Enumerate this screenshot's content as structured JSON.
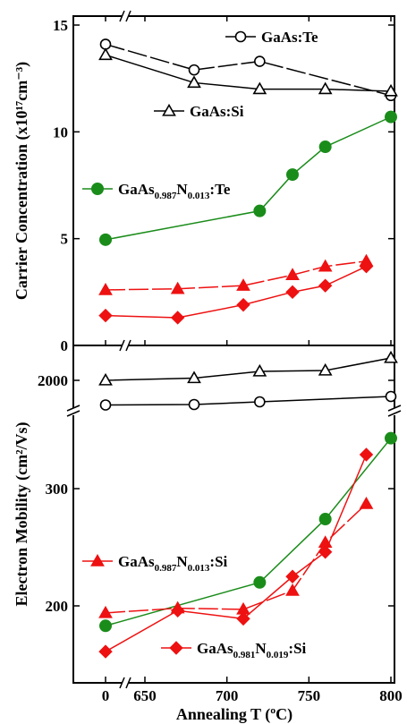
{
  "chart_data": {
    "type": "line",
    "x_axis": {
      "label": "Annealing T (ºC)",
      "ticks": [
        "0",
        "650",
        "700",
        "750",
        "800"
      ],
      "broken_between": [
        "0",
        "650"
      ]
    },
    "panels": [
      {
        "id": "carrier-concentration",
        "ylabel": "Carrier Concentration (x10¹⁷cm⁻³)",
        "y_ticks": [
          "0",
          "5",
          "10",
          "15"
        ],
        "ylim": [
          0,
          15
        ],
        "series": [
          {
            "name": "GaAs:Te",
            "marker": "open-circle",
            "color": "#000000",
            "dash": "long",
            "points": [
              {
                "x": 0,
                "y": 14.1
              },
              {
                "x": 680,
                "y": 12.9
              },
              {
                "x": 720,
                "y": 13.3
              },
              {
                "x": 800,
                "y": 11.7
              }
            ]
          },
          {
            "name": "GaAs:Si",
            "marker": "open-triangle",
            "color": "#000000",
            "dash": "solid",
            "points": [
              {
                "x": 0,
                "y": 13.6
              },
              {
                "x": 680,
                "y": 12.3
              },
              {
                "x": 720,
                "y": 12.0
              },
              {
                "x": 760,
                "y": 12.0
              },
              {
                "x": 800,
                "y": 11.9
              }
            ]
          },
          {
            "name": "GaAs0.987N0.013:Te",
            "marker": "filled-circle",
            "color": "#1a8c1a",
            "dash": "solid",
            "points": [
              {
                "x": 0,
                "y": 4.95
              },
              {
                "x": 720,
                "y": 6.3
              },
              {
                "x": 740,
                "y": 8.0
              },
              {
                "x": 760,
                "y": 9.3
              },
              {
                "x": 800,
                "y": 10.7
              }
            ]
          },
          {
            "name": "GaAs0.987N0.013:Si",
            "marker": "filled-triangle",
            "color": "#ee1111",
            "dash": "long",
            "points": [
              {
                "x": 0,
                "y": 2.6
              },
              {
                "x": 670,
                "y": 2.65
              },
              {
                "x": 710,
                "y": 2.8
              },
              {
                "x": 740,
                "y": 3.3
              },
              {
                "x": 760,
                "y": 3.7
              },
              {
                "x": 785,
                "y": 3.95
              }
            ]
          },
          {
            "name": "GaAs0.981N0.019:Si",
            "marker": "filled-diamond",
            "color": "#ee1111",
            "dash": "solid",
            "points": [
              {
                "x": 0,
                "y": 1.4
              },
              {
                "x": 670,
                "y": 1.3
              },
              {
                "x": 710,
                "y": 1.9
              },
              {
                "x": 740,
                "y": 2.5
              },
              {
                "x": 760,
                "y": 2.8
              },
              {
                "x": 785,
                "y": 3.7
              }
            ]
          }
        ]
      },
      {
        "id": "electron-mobility",
        "ylabel": "Electron Mobility (cm²/Vs)",
        "y_ticks": [
          "200",
          "300",
          "2000"
        ],
        "broken_between": [
          "300",
          "2000"
        ],
        "ylim_lower": [
          150,
          365
        ],
        "series": [
          {
            "name": "GaAs:Si",
            "marker": "open-triangle",
            "color": "#000000",
            "dash": "solid",
            "points": [
              {
                "x": 0,
                "y": 2000
              },
              {
                "x": 680,
                "y": 2025
              },
              {
                "x": 720,
                "y": 2100
              },
              {
                "x": 760,
                "y": 2110
              },
              {
                "x": 800,
                "y": 2250
              }
            ]
          },
          {
            "name": "GaAs:Te",
            "marker": "open-circle",
            "color": "#000000",
            "dash": "solid",
            "points": [
              {
                "x": 0,
                "y": 1725
              },
              {
                "x": 680,
                "y": 1730
              },
              {
                "x": 720,
                "y": 1760
              },
              {
                "x": 800,
                "y": 1820
              }
            ]
          },
          {
            "name": "GaAs0.987N0.013:Te",
            "marker": "filled-circle",
            "color": "#1a8c1a",
            "dash": "solid",
            "points": [
              {
                "x": 0,
                "y": 183
              },
              {
                "x": 720,
                "y": 220
              },
              {
                "x": 760,
                "y": 274
              },
              {
                "x": 800,
                "y": 343
              }
            ]
          },
          {
            "name": "GaAs0.987N0.013:Si",
            "marker": "filled-triangle",
            "color": "#ee1111",
            "dash": "long",
            "points": [
              {
                "x": 0,
                "y": 194
              },
              {
                "x": 670,
                "y": 198
              },
              {
                "x": 710,
                "y": 197
              },
              {
                "x": 740,
                "y": 213
              },
              {
                "x": 760,
                "y": 254
              },
              {
                "x": 785,
                "y": 287
              }
            ]
          },
          {
            "name": "GaAs0.981N0.019:Si",
            "marker": "filled-diamond",
            "color": "#ee1111",
            "dash": "solid",
            "points": [
              {
                "x": 0,
                "y": 161
              },
              {
                "x": 670,
                "y": 196
              },
              {
                "x": 710,
                "y": 189
              },
              {
                "x": 740,
                "y": 225
              },
              {
                "x": 760,
                "y": 246
              },
              {
                "x": 785,
                "y": 329
              }
            ]
          }
        ]
      }
    ],
    "legend": [
      {
        "panel": "carrier-concentration",
        "series": "GaAs:Te",
        "text": "GaAs:Te"
      },
      {
        "panel": "carrier-concentration",
        "series": "GaAs:Si",
        "text": "GaAs:Si"
      },
      {
        "panel": "carrier-concentration",
        "series": "GaAs0.987N0.013:Te",
        "parts": [
          "GaAs",
          "0.987",
          "N",
          "0.013",
          ":Te"
        ]
      },
      {
        "panel": "electron-mobility",
        "series": "GaAs0.987N0.013:Si",
        "parts": [
          "GaAs",
          "0.987",
          "N",
          "0.013",
          ":Si"
        ]
      },
      {
        "panel": "electron-mobility",
        "series": "GaAs0.981N0.019:Si",
        "parts": [
          "GaAs",
          "0.981",
          "N",
          "0.019",
          ":Si"
        ]
      }
    ]
  }
}
